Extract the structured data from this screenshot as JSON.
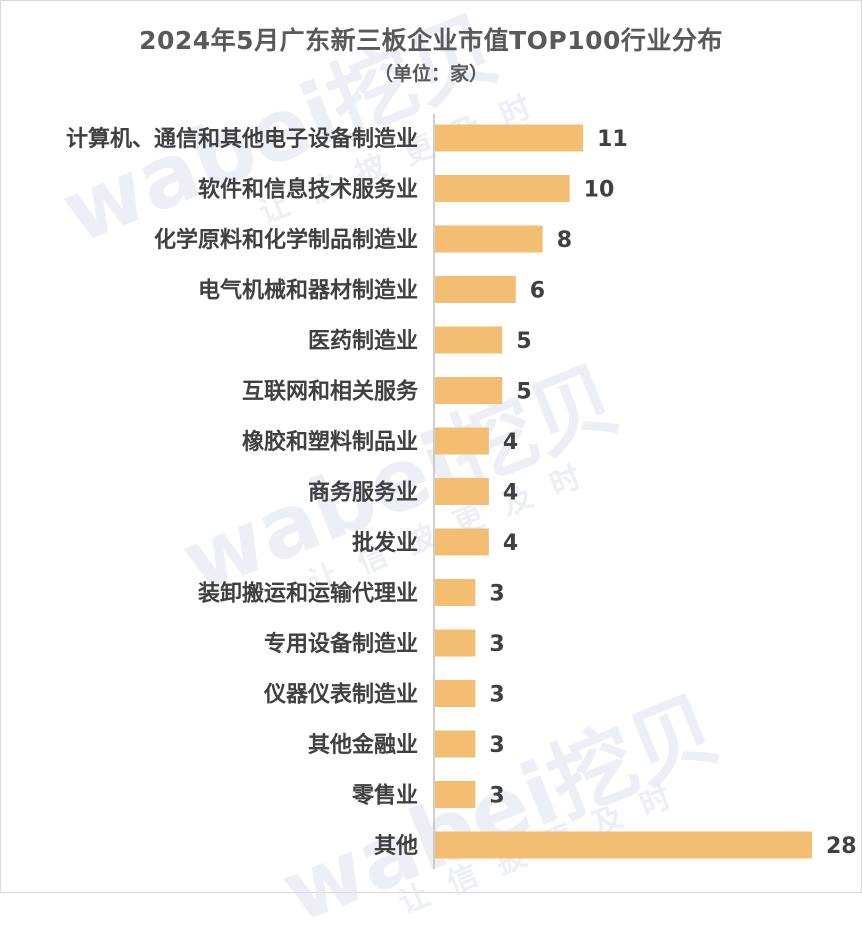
{
  "title": "2024年5月广东新三板企业市值TOP100行业分布",
  "subtitle": "（单位：家）",
  "watermark": {
    "logo": "wabei挖贝",
    "slogan": "让信披更及时"
  },
  "colors": {
    "bar": "#f3bd72",
    "axis": "#bfbfbf",
    "text": "#404040",
    "title": "#595959"
  },
  "chart_data": {
    "type": "bar",
    "orientation": "horizontal",
    "title": "2024年5月广东新三板企业市值TOP100行业分布",
    "subtitle": "（单位：家）",
    "xlabel": "",
    "ylabel": "",
    "xlim": [
      0,
      28
    ],
    "grid": false,
    "legend": "none",
    "categories": [
      "计算机、通信和其他电子设备制造业",
      "软件和信息技术服务业",
      "化学原料和化学制品制造业",
      "电气机械和器材制造业",
      "医药制造业",
      "互联网和相关服务",
      "橡胶和塑料制品业",
      "商务服务业",
      "批发业",
      "装卸搬运和运输代理业",
      "专用设备制造业",
      "仪器仪表制造业",
      "其他金融业",
      "零售业",
      "其他"
    ],
    "values": [
      11,
      10,
      8,
      6,
      5,
      5,
      4,
      4,
      4,
      3,
      3,
      3,
      3,
      3,
      28
    ]
  }
}
